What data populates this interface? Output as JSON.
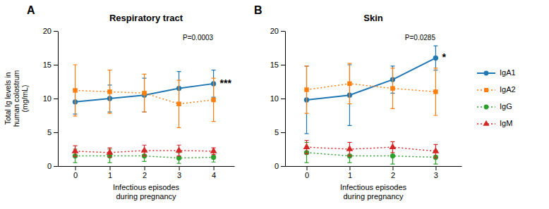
{
  "chart_data": [
    {
      "type": "line",
      "label": "A",
      "title": "Respiratory tract",
      "xlabel": "Infectious episodes\nduring pregnancy",
      "ylabel": "Total Ig levels in\nhuman colostrum\n(mg/mL)",
      "x": [
        0,
        1,
        2,
        3,
        4
      ],
      "xlim": [
        -0.5,
        4.6
      ],
      "xticks": [
        0,
        1,
        2,
        3,
        4
      ],
      "ylim": [
        0,
        20
      ],
      "yticks": [
        0,
        5,
        10,
        15,
        20
      ],
      "series": [
        {
          "name": "IgA1",
          "marker": "circle",
          "line_style": "solid",
          "values": [
            9.5,
            10.0,
            10.5,
            11.5,
            12.2
          ],
          "errors": [
            1.8,
            2.0,
            2.5,
            2.5,
            2.0
          ]
        },
        {
          "name": "IgA2",
          "marker": "square",
          "line_style": "dotted",
          "values": [
            11.2,
            11.0,
            10.8,
            9.2,
            9.8
          ],
          "errors": [
            3.8,
            3.2,
            2.8,
            3.5,
            3.2
          ]
        },
        {
          "name": "IgG",
          "marker": "circle",
          "line_style": "dotted",
          "values": [
            1.5,
            1.5,
            1.5,
            1.2,
            1.3
          ],
          "errors": [
            1.0,
            1.0,
            0.8,
            0.8,
            0.7
          ]
        },
        {
          "name": "IgM",
          "marker": "triangle",
          "line_style": "dotted",
          "values": [
            2.2,
            2.0,
            2.3,
            2.3,
            2.2
          ],
          "errors": [
            0.8,
            0.7,
            0.8,
            0.8,
            0.5
          ]
        }
      ],
      "annotations": [
        {
          "text": "P=0.0003"
        },
        {
          "text": "***",
          "series": "IgA1"
        }
      ]
    },
    {
      "type": "line",
      "label": "B",
      "title": "Skin",
      "xlabel": "Infectious episodes\nduring pregnancy",
      "x": [
        0,
        1,
        2,
        3
      ],
      "xlim": [
        -0.5,
        3.6
      ],
      "xticks": [
        0,
        1,
        2,
        3
      ],
      "ylim": [
        0,
        20
      ],
      "yticks": [
        0,
        5,
        10,
        15,
        20
      ],
      "legend": "right",
      "series": [
        {
          "name": "IgA1",
          "marker": "circle",
          "line_style": "solid",
          "values": [
            9.8,
            10.5,
            12.8,
            16.0
          ],
          "errors": [
            5.0,
            4.5,
            2.0,
            1.8
          ]
        },
        {
          "name": "IgA2",
          "marker": "square",
          "line_style": "dotted",
          "values": [
            11.3,
            12.2,
            11.5,
            11.0
          ],
          "errors": [
            3.5,
            3.0,
            3.0,
            3.5
          ]
        },
        {
          "name": "IgG",
          "marker": "circle",
          "line_style": "dotted",
          "values": [
            2.0,
            1.5,
            1.5,
            1.3
          ],
          "errors": [
            1.5,
            1.0,
            1.2,
            1.0
          ]
        },
        {
          "name": "IgM",
          "marker": "triangle",
          "line_style": "dotted",
          "values": [
            2.8,
            2.5,
            2.8,
            2.2
          ],
          "errors": [
            1.0,
            1.0,
            0.8,
            1.0
          ]
        }
      ],
      "annotations": [
        {
          "text": "P=0.0285"
        },
        {
          "text": "*",
          "series": "IgA1"
        }
      ]
    }
  ]
}
